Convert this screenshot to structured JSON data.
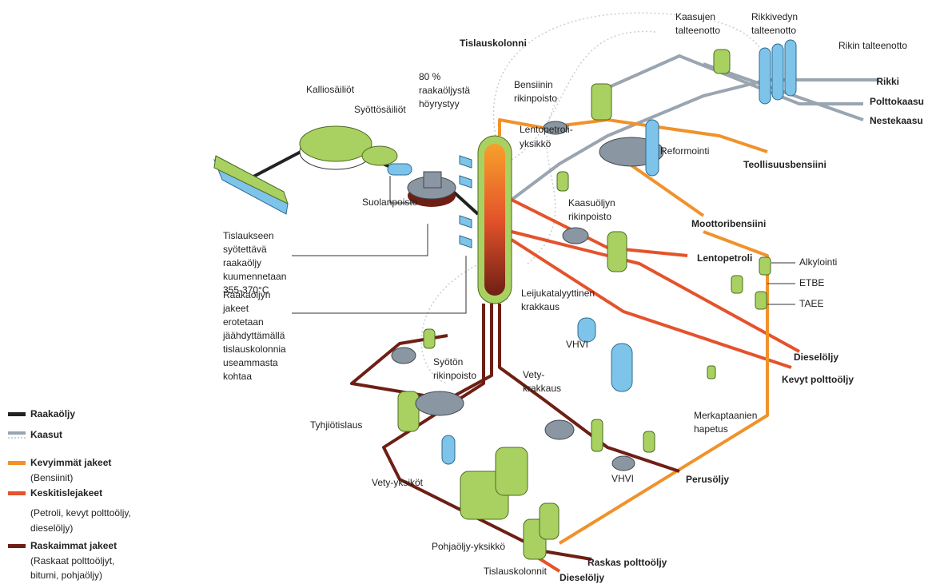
{
  "labels": [
    [
      "Kaasujen",
      "talteenotto"
    ],
    [
      "Rikkivedyn",
      "talteenotto"
    ],
    [
      "Rikin talteenotto"
    ],
    [
      "Tislauskolonni"
    ],
    [
      "80 %",
      "raakaöljystä",
      "höyrystyy"
    ],
    [
      "Kalliosäiliöt"
    ],
    [
      "Syöttösäiliöt"
    ],
    [
      "Bensiinin",
      "rikinpoisto"
    ],
    [
      "Lentopetroli-",
      "yksikkö"
    ],
    [
      "Reformointi"
    ],
    [
      "Suolanpoisto"
    ],
    [
      "Kaasuöljyn",
      "rikinpoisto"
    ],
    [
      "Tislaukseen",
      "syötettävä",
      "raakaöljy",
      "kuumennetaan",
      "355-370°C"
    ],
    [
      "Alkylointi"
    ],
    [
      "ETBE"
    ],
    [
      "TAEE"
    ],
    [
      "Leijukatalyyttinen",
      "krakkaus"
    ],
    [
      "Raakaöljyn",
      "jakeet",
      "erotetaan",
      "jäähdyttämällä",
      "tislauskolonnia",
      "useammasta",
      "kohtaa"
    ],
    [
      "VHVI"
    ],
    [
      "Syötön",
      "rikinpoisto"
    ],
    [
      "Vety-",
      "krakkaus"
    ],
    [
      "Merkaptaanien",
      "hapetus"
    ],
    [
      "Tyhjiötislaus"
    ],
    [
      "VHVI"
    ],
    [
      "Vety-yksiköt"
    ],
    [
      "Pohjaöljy-yksikkö"
    ],
    [
      "Tislauskolonnit"
    ]
  ],
  "products": [
    "Rikki",
    "Polttokaasu",
    "Nestekaasu",
    "Teollisuusbensiini",
    "Moottoribensiini",
    "Lentopetroli",
    "Dieselöljy",
    "Kevyt polttoöljy",
    "Perusöljy",
    "Raskas polttoöljy",
    "Dieselöljy"
  ],
  "legend": [
    {
      "name": "Raakaöljy"
    },
    {
      "name": "Kaasut"
    },
    {
      "name": "Kevyimmät jakeet",
      "note": [
        "(Bensiinit)"
      ]
    },
    {
      "name": "Keskitislejakeet",
      "note": [
        "(Petroli, kevyt polttoöljy,",
        "dieselöljy)"
      ]
    },
    {
      "name": "Raskaimmat jakeet",
      "note": [
        "(Raskaat polttoöljyt,",
        "bitumi, pohjaöljy)"
      ]
    }
  ]
}
